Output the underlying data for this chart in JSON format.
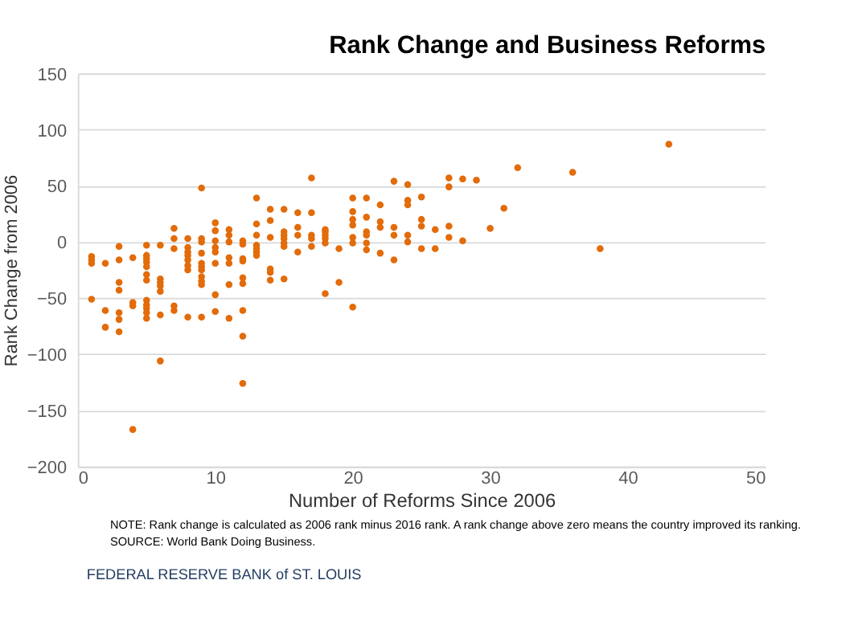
{
  "chart_data": {
    "type": "scatter",
    "title": "Rank Change and Business Reforms",
    "xlabel": "Number of Reforms Since 2006",
    "ylabel": "Rank Change from 2006",
    "x": [
      1,
      1,
      1,
      1,
      2,
      2,
      2,
      3,
      3,
      3,
      3,
      3,
      3,
      3,
      4,
      4,
      4,
      4,
      5,
      5,
      5,
      5,
      5,
      5,
      5,
      5,
      5,
      5,
      5,
      5,
      6,
      6,
      6,
      6,
      6,
      6,
      6,
      7,
      7,
      7,
      7,
      7,
      8,
      8,
      8,
      8,
      8,
      8,
      8,
      8,
      9,
      9,
      9,
      9,
      9,
      9,
      9,
      9,
      9,
      9,
      9,
      10,
      10,
      10,
      10,
      10,
      10,
      10,
      10,
      11,
      11,
      11,
      11,
      11,
      11,
      11,
      12,
      12,
      12,
      12,
      12,
      12,
      12,
      12,
      12,
      13,
      13,
      13,
      13,
      13,
      13,
      13,
      14,
      14,
      14,
      14,
      14,
      14,
      15,
      15,
      15,
      15,
      15,
      15,
      15,
      16,
      16,
      16,
      16,
      17,
      17,
      17,
      17,
      17,
      18,
      18,
      18,
      18,
      18,
      18,
      19,
      19,
      20,
      20,
      20,
      20,
      20,
      20,
      20,
      21,
      21,
      21,
      21,
      21,
      21,
      22,
      22,
      22,
      22,
      23,
      23,
      23,
      23,
      24,
      24,
      24,
      24,
      24,
      25,
      25,
      25,
      25,
      26,
      26,
      27,
      27,
      27,
      27,
      28,
      28,
      29,
      30,
      31,
      32,
      36,
      38,
      43
    ],
    "values": [
      -13,
      -16,
      -19,
      -51,
      -19,
      -61,
      -76,
      -4,
      -16,
      -36,
      -43,
      -63,
      -69,
      -80,
      -14,
      -54,
      -57,
      -167,
      -3,
      -12,
      -15,
      -18,
      -22,
      -29,
      -34,
      -52,
      -56,
      -59,
      -63,
      -68,
      -3,
      -33,
      -36,
      -39,
      -44,
      -65,
      -106,
      12,
      3,
      -6,
      -57,
      -61,
      3,
      -5,
      -9,
      -12,
      -16,
      -21,
      -25,
      -67,
      48,
      3,
      0,
      -10,
      -19,
      -22,
      -25,
      -31,
      -35,
      -38,
      -67,
      17,
      10,
      1,
      -5,
      -9,
      -19,
      -47,
      -62,
      11,
      6,
      0,
      -14,
      -19,
      -38,
      -68,
      1,
      -2,
      -15,
      -17,
      -32,
      -37,
      -61,
      -84,
      -126,
      39,
      16,
      6,
      -3,
      -6,
      -9,
      -12,
      29,
      19,
      4,
      -24,
      -27,
      -34,
      29,
      9,
      6,
      3,
      -1,
      -4,
      -33,
      26,
      13,
      6,
      -9,
      57,
      26,
      6,
      3,
      -4,
      11,
      9,
      6,
      3,
      -1,
      -46,
      -6,
      -36,
      39,
      27,
      20,
      15,
      4,
      -1,
      -58,
      39,
      22,
      9,
      6,
      -1,
      -7,
      33,
      18,
      13,
      -10,
      54,
      13,
      6,
      -16,
      51,
      37,
      33,
      6,
      0,
      40,
      20,
      14,
      -6,
      11,
      -6,
      57,
      49,
      14,
      4,
      56,
      1,
      55,
      12,
      30,
      66,
      62,
      -6,
      87
    ],
    "color": "#e26b0a",
    "marker": "circle",
    "xlim": [
      0,
      50
    ],
    "xticks": [
      0,
      10,
      20,
      30,
      40,
      50
    ],
    "ylim": [
      -200,
      150
    ],
    "yticks": [
      -200,
      -150,
      -100,
      -50,
      0,
      50,
      100,
      150
    ],
    "grid": "y",
    "annotations": [
      "NOTE: Rank change is calculated as 2006 rank minus 2016 rank. A rank change above zero means the country improved its ranking.",
      "SOURCE: World Bank Doing Business.",
      "FEDERAL RESERVE BANK of ST. LOUIS"
    ]
  }
}
